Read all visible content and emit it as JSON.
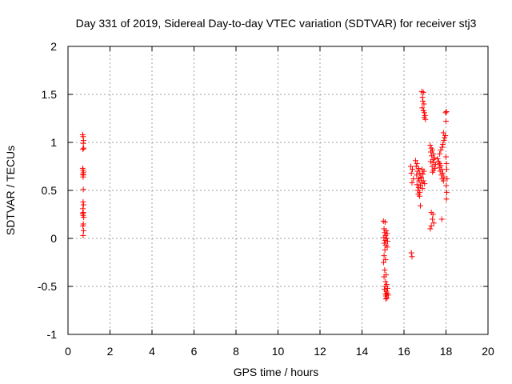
{
  "chart_data": {
    "type": "scatter",
    "title": "Day 331 of 2019, Sidereal Day-to-day VTEC variation (SDTVAR) for receiver stj3",
    "xlabel": "GPS time / hours",
    "ylabel": "SDTVAR / TECUs",
    "xlim": [
      0,
      20
    ],
    "ylim": [
      -1,
      2
    ],
    "xticks": [
      0,
      2,
      4,
      6,
      8,
      10,
      12,
      14,
      16,
      18,
      20
    ],
    "yticks": [
      -1,
      -0.5,
      0,
      0.5,
      1,
      1.5,
      2
    ],
    "xtick_labels": [
      "0",
      "2",
      "4",
      "6",
      "8",
      "10",
      "12",
      "14",
      "16",
      "18",
      "20"
    ],
    "ytick_labels": [
      "-1",
      "-0.5",
      "0",
      "0.5",
      "1",
      "1.5",
      "2"
    ],
    "grid": true,
    "marker": "plus",
    "series": [
      {
        "name": "SDTVAR",
        "color": "#ff0000",
        "points": [
          [
            0.7,
            1.08
          ],
          [
            0.72,
            1.06
          ],
          [
            0.74,
            1.02
          ],
          [
            0.73,
            0.99
          ],
          [
            0.75,
            0.94
          ],
          [
            0.71,
            0.93
          ],
          [
            0.7,
            0.73
          ],
          [
            0.72,
            0.71
          ],
          [
            0.74,
            0.69
          ],
          [
            0.71,
            0.67
          ],
          [
            0.73,
            0.66
          ],
          [
            0.72,
            0.64
          ],
          [
            0.73,
            0.51
          ],
          [
            0.72,
            0.38
          ],
          [
            0.74,
            0.35
          ],
          [
            0.71,
            0.31
          ],
          [
            0.73,
            0.27
          ],
          [
            0.7,
            0.26
          ],
          [
            0.72,
            0.24
          ],
          [
            0.75,
            0.22
          ],
          [
            0.73,
            0.15
          ],
          [
            0.71,
            0.13
          ],
          [
            0.74,
            0.08
          ],
          [
            0.72,
            0.03
          ],
          [
            15.02,
            0.18
          ],
          [
            15.1,
            0.17
          ],
          [
            15.05,
            0.1
          ],
          [
            15.15,
            0.08
          ],
          [
            15.08,
            0.06
          ],
          [
            15.2,
            0.05
          ],
          [
            15.12,
            0.03
          ],
          [
            15.04,
            0.01
          ],
          [
            15.18,
            0.0
          ],
          [
            15.1,
            -0.02
          ],
          [
            15.22,
            -0.03
          ],
          [
            15.06,
            -0.05
          ],
          [
            15.14,
            -0.07
          ],
          [
            15.2,
            -0.09
          ],
          [
            15.09,
            -0.12
          ],
          [
            15.05,
            -0.18
          ],
          [
            15.12,
            -0.22
          ],
          [
            15.03,
            -0.25
          ],
          [
            15.08,
            -0.33
          ],
          [
            15.15,
            -0.38
          ],
          [
            15.05,
            -0.4
          ],
          [
            15.12,
            -0.45
          ],
          [
            15.18,
            -0.48
          ],
          [
            15.1,
            -0.5
          ],
          [
            15.22,
            -0.52
          ],
          [
            15.07,
            -0.53
          ],
          [
            15.16,
            -0.55
          ],
          [
            15.2,
            -0.57
          ],
          [
            15.11,
            -0.58
          ],
          [
            15.25,
            -0.59
          ],
          [
            15.14,
            -0.6
          ],
          [
            15.19,
            -0.62
          ],
          [
            15.13,
            -0.63
          ],
          [
            16.35,
            -0.15
          ],
          [
            16.38,
            -0.19
          ],
          [
            16.32,
            0.75
          ],
          [
            16.4,
            0.72
          ],
          [
            16.35,
            0.68
          ],
          [
            16.45,
            0.62
          ],
          [
            16.38,
            0.58
          ],
          [
            16.55,
            0.81
          ],
          [
            16.62,
            0.78
          ],
          [
            16.58,
            0.75
          ],
          [
            16.7,
            0.73
          ],
          [
            16.65,
            0.7
          ],
          [
            16.75,
            0.68
          ],
          [
            16.6,
            0.66
          ],
          [
            16.8,
            0.64
          ],
          [
            16.68,
            0.62
          ],
          [
            16.72,
            0.6
          ],
          [
            16.85,
            0.58
          ],
          [
            16.62,
            0.56
          ],
          [
            16.78,
            0.55
          ],
          [
            16.7,
            0.53
          ],
          [
            16.88,
            0.52
          ],
          [
            16.65,
            0.5
          ],
          [
            16.75,
            0.48
          ],
          [
            16.68,
            0.46
          ],
          [
            16.82,
            0.63
          ],
          [
            16.9,
            0.67
          ],
          [
            16.95,
            0.7
          ],
          [
            16.92,
            0.6
          ],
          [
            16.98,
            0.57
          ],
          [
            16.86,
            0.72
          ],
          [
            16.78,
            0.34
          ],
          [
            16.74,
            0.44
          ],
          [
            16.85,
            1.53
          ],
          [
            16.92,
            1.52
          ],
          [
            16.88,
            1.47
          ],
          [
            16.9,
            1.43
          ],
          [
            16.95,
            1.4
          ],
          [
            16.87,
            1.36
          ],
          [
            16.93,
            1.33
          ],
          [
            16.97,
            1.31
          ],
          [
            17.0,
            1.28
          ],
          [
            16.96,
            1.26
          ],
          [
            17.02,
            1.24
          ],
          [
            17.25,
            0.97
          ],
          [
            17.3,
            0.94
          ],
          [
            17.35,
            0.92
          ],
          [
            17.28,
            0.9
          ],
          [
            17.4,
            0.88
          ],
          [
            17.32,
            0.86
          ],
          [
            17.45,
            0.84
          ],
          [
            17.38,
            0.82
          ],
          [
            17.27,
            0.8
          ],
          [
            17.42,
            0.79
          ],
          [
            17.5,
            0.77
          ],
          [
            17.34,
            0.75
          ],
          [
            17.47,
            0.73
          ],
          [
            17.4,
            0.71
          ],
          [
            17.36,
            0.69
          ],
          [
            17.3,
            0.27
          ],
          [
            17.38,
            0.25
          ],
          [
            17.35,
            0.2
          ],
          [
            17.42,
            0.16
          ],
          [
            17.3,
            0.13
          ],
          [
            17.25,
            0.1
          ],
          [
            17.8,
            0.2
          ],
          [
            17.6,
            0.83
          ],
          [
            17.65,
            0.8
          ],
          [
            17.7,
            0.78
          ],
          [
            17.75,
            0.76
          ],
          [
            17.68,
            0.74
          ],
          [
            17.8,
            0.72
          ],
          [
            17.72,
            0.7
          ],
          [
            17.85,
            0.68
          ],
          [
            17.78,
            0.66
          ],
          [
            17.9,
            0.64
          ],
          [
            17.82,
            0.62
          ],
          [
            17.88,
            0.6
          ],
          [
            17.7,
            0.88
          ],
          [
            17.75,
            0.92
          ],
          [
            17.82,
            0.95
          ],
          [
            17.85,
            0.98
          ],
          [
            17.9,
            1.02
          ],
          [
            17.93,
            1.05
          ],
          [
            17.97,
            1.07
          ],
          [
            17.88,
            1.1
          ],
          [
            18.0,
            0.85
          ],
          [
            18.02,
            0.78
          ],
          [
            18.02,
            1.32
          ],
          [
            17.98,
            1.31
          ],
          [
            18.0,
            1.22
          ],
          [
            18.03,
            0.72
          ],
          [
            18.05,
            0.62
          ],
          [
            18.01,
            0.55
          ],
          [
            18.04,
            0.48
          ],
          [
            18.02,
            0.41
          ]
        ]
      }
    ]
  }
}
